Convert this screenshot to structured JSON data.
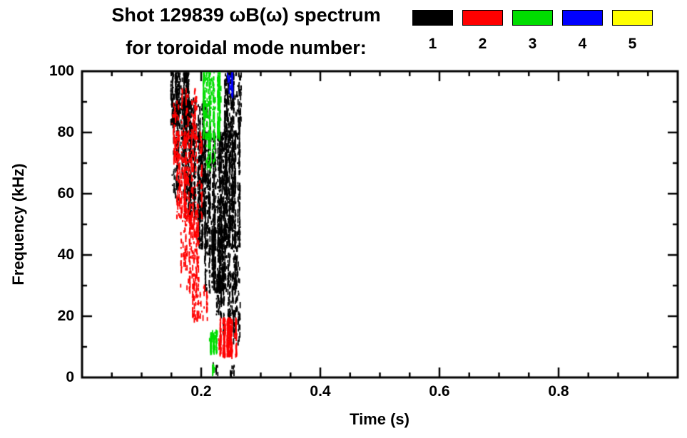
{
  "chart_data": {
    "type": "scatter",
    "title_line1": "Shot 129839 ωB(ω) spectrum",
    "title_line2": "for toroidal mode number:",
    "xlabel": "Time (s)",
    "ylabel": "Frequency (kHz)",
    "xlim": [
      0,
      1
    ],
    "ylim": [
      0,
      100
    ],
    "xticks": [
      0.2,
      0.4,
      0.6,
      0.8
    ],
    "xminor": 0.05,
    "yticks": [
      0,
      20,
      40,
      60,
      80,
      100
    ],
    "yminor": 10,
    "frame_color": "#000000",
    "legend": [
      {
        "label": "1",
        "color": "#000000"
      },
      {
        "label": "2",
        "color": "#ff0000"
      },
      {
        "label": "3",
        "color": "#00dd00"
      },
      {
        "label": "4",
        "color": "#0000ff"
      },
      {
        "label": "5",
        "color": "#ffff00"
      }
    ],
    "series": [
      {
        "name": "n=1",
        "color": "#000000",
        "clusters": [
          {
            "t": [
              0.148,
              0.178
            ],
            "f": [
              82,
              100
            ],
            "n": 400
          },
          {
            "t": [
              0.15,
              0.19
            ],
            "f": [
              58,
              92
            ],
            "n": 300
          },
          {
            "t": [
              0.172,
              0.215
            ],
            "f": [
              52,
              90
            ],
            "n": 550
          },
          {
            "t": [
              0.193,
              0.266
            ],
            "f": [
              42,
              80
            ],
            "n": 1300
          },
          {
            "t": [
              0.205,
              0.264
            ],
            "f": [
              28,
              48
            ],
            "n": 500
          },
          {
            "t": [
              0.222,
              0.264
            ],
            "f": [
              20,
              34
            ],
            "n": 160
          },
          {
            "t": [
              0.236,
              0.264
            ],
            "f": [
              11,
              22
            ],
            "n": 70
          },
          {
            "t": [
              0.238,
              0.266
            ],
            "f": [
              78,
              100
            ],
            "n": 260
          },
          {
            "t": [
              0.216,
              0.228
            ],
            "f": [
              1,
              4
            ],
            "n": 10
          },
          {
            "t": [
              0.248,
              0.256
            ],
            "f": [
              1,
              4
            ],
            "n": 10
          }
        ]
      },
      {
        "name": "n=2",
        "color": "#ff0000",
        "clusters": [
          {
            "t": [
              0.158,
              0.2
            ],
            "f": [
              52,
              80
            ],
            "n": 300
          },
          {
            "t": [
              0.162,
              0.196
            ],
            "f": [
              28,
              56
            ],
            "n": 220
          },
          {
            "t": [
              0.166,
              0.192
            ],
            "f": [
              78,
              94
            ],
            "n": 90
          },
          {
            "t": [
              0.184,
              0.21
            ],
            "f": [
              18,
              30
            ],
            "n": 70
          },
          {
            "t": [
              0.228,
              0.258
            ],
            "f": [
              7,
              19
            ],
            "n": 320
          },
          {
            "t": [
              0.15,
              0.162
            ],
            "f": [
              70,
              90
            ],
            "n": 60
          }
        ]
      },
      {
        "name": "n=3",
        "color": "#00dd00",
        "clusters": [
          {
            "t": [
              0.2,
              0.233
            ],
            "f": [
              78,
              100
            ],
            "n": 340
          },
          {
            "t": [
              0.206,
              0.222
            ],
            "f": [
              68,
              80
            ],
            "n": 60
          },
          {
            "t": [
              0.212,
              0.227
            ],
            "f": [
              8,
              15
            ],
            "n": 110
          },
          {
            "t": [
              0.215,
              0.223
            ],
            "f": [
              1,
              4
            ],
            "n": 8
          }
        ]
      },
      {
        "name": "n=4",
        "color": "#0000ff",
        "clusters": [
          {
            "t": [
              0.243,
              0.252
            ],
            "f": [
              92,
              100
            ],
            "n": 45
          }
        ]
      },
      {
        "name": "n=5",
        "color": "#ffff00",
        "clusters": []
      }
    ]
  }
}
